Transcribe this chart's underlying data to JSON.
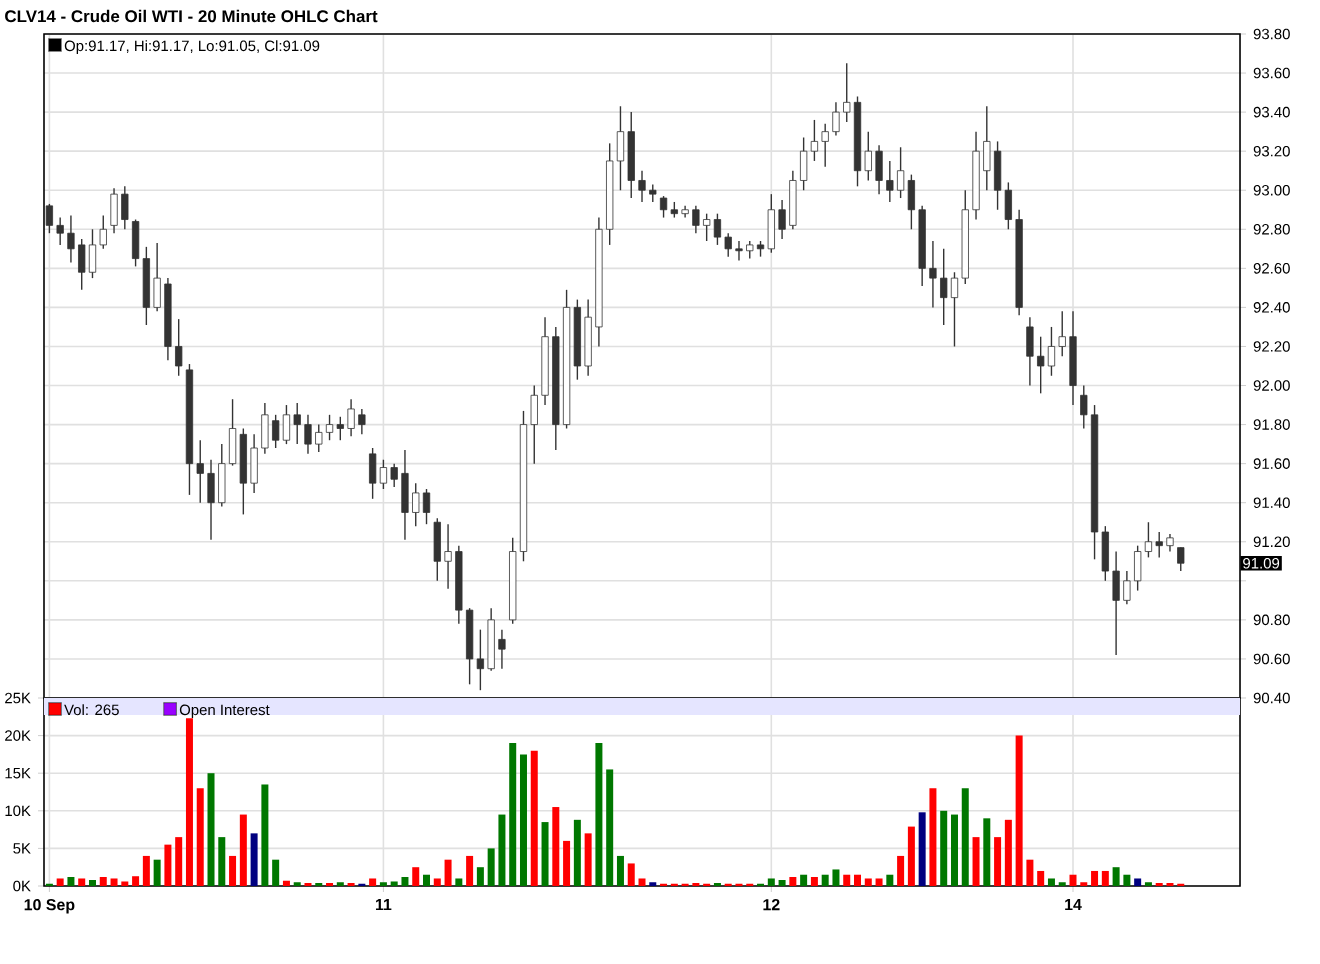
{
  "chart_data": [
    {
      "type": "candlestick",
      "title": "CLV14 - Crude Oil WTI - 20 Minute OHLC Chart",
      "color": "#333333",
      "grid": true,
      "tick_labels": "y",
      "annotations": [
        "Op:91.17, Hi:91.17, Lo:91.05, Cl:91.09",
        "91.09"
      ],
      "ylim": [
        90.4,
        93.8
      ],
      "yticks": [
        {
          "value": 90.4,
          "label": "90.40"
        },
        {
          "value": 90.6,
          "label": "90.60"
        },
        {
          "value": 90.8,
          "label": "90.80"
        },
        {
          "value": 91.0,
          "label": null
        },
        {
          "value": 91.2,
          "label": "91.20"
        },
        {
          "value": 91.4,
          "label": "91.40"
        },
        {
          "value": 91.6,
          "label": "91.60"
        },
        {
          "value": 91.8,
          "label": "91.80"
        },
        {
          "value": 92.0,
          "label": "92.00"
        },
        {
          "value": 92.2,
          "label": "92.20"
        },
        {
          "value": 92.4,
          "label": "92.40"
        },
        {
          "value": 92.6,
          "label": "92.60"
        },
        {
          "value": 92.8,
          "label": "92.80"
        },
        {
          "value": 93.0,
          "label": "93.00"
        },
        {
          "value": 93.2,
          "label": "93.20"
        },
        {
          "value": 93.4,
          "label": "93.40"
        },
        {
          "value": 93.6,
          "label": "93.60"
        },
        {
          "value": 93.8,
          "label": "93.80"
        }
      ],
      "categories": [
        null,
        null,
        null,
        null,
        null,
        null,
        null,
        null,
        null,
        null,
        null,
        null,
        null,
        null,
        null,
        null,
        null,
        null,
        null,
        null,
        null,
        null,
        null,
        null,
        null,
        null,
        null,
        null,
        null,
        null,
        null,
        null,
        null,
        null,
        null,
        null,
        null,
        null,
        null,
        null,
        null,
        null,
        null,
        null,
        null,
        null,
        null,
        null,
        null,
        null,
        null,
        null,
        null,
        null,
        null,
        null,
        null,
        null,
        null,
        null,
        null,
        null,
        null,
        null,
        null,
        null,
        null,
        null,
        null,
        null,
        null,
        null,
        null,
        null,
        null,
        null,
        null,
        null,
        null,
        null,
        null,
        null,
        null,
        null,
        null,
        null,
        null,
        null,
        null,
        null,
        null,
        null,
        null,
        null,
        null,
        null,
        null,
        null,
        null,
        null,
        null,
        null,
        null,
        null,
        null,
        null
      ],
      "ohlc": [
        [
          92.92,
          92.93,
          92.78,
          92.82
        ],
        [
          92.82,
          92.86,
          92.72,
          92.78
        ],
        [
          92.78,
          92.87,
          92.63,
          92.7
        ],
        [
          92.72,
          92.75,
          92.49,
          92.58
        ],
        [
          92.58,
          92.8,
          92.55,
          92.72
        ],
        [
          92.72,
          92.87,
          92.7,
          92.8
        ],
        [
          92.82,
          93.01,
          92.78,
          92.98
        ],
        [
          92.98,
          93.02,
          92.8,
          92.85
        ],
        [
          92.84,
          92.85,
          92.61,
          92.65
        ],
        [
          92.65,
          92.71,
          92.31,
          92.4
        ],
        [
          92.4,
          92.73,
          92.38,
          92.55
        ],
        [
          92.52,
          92.55,
          92.13,
          92.2
        ],
        [
          92.2,
          92.34,
          92.05,
          92.1
        ],
        [
          92.08,
          92.11,
          91.44,
          91.6
        ],
        [
          91.6,
          91.72,
          91.4,
          91.55
        ],
        [
          91.55,
          91.62,
          91.21,
          91.4
        ],
        [
          91.4,
          91.7,
          91.38,
          91.6
        ],
        [
          91.6,
          91.93,
          91.59,
          91.78
        ],
        [
          91.75,
          91.78,
          91.34,
          91.5
        ],
        [
          91.5,
          91.75,
          91.45,
          91.68
        ],
        [
          91.68,
          91.91,
          91.65,
          91.85
        ],
        [
          91.82,
          91.85,
          91.68,
          91.72
        ],
        [
          91.72,
          91.9,
          91.7,
          91.85
        ],
        [
          91.85,
          91.91,
          91.7,
          91.8
        ],
        [
          91.8,
          91.85,
          91.65,
          91.7
        ],
        [
          91.7,
          91.8,
          91.66,
          91.76
        ],
        [
          91.76,
          91.85,
          91.72,
          91.8
        ],
        [
          91.8,
          91.84,
          91.72,
          91.78
        ],
        [
          91.78,
          91.93,
          91.74,
          91.88
        ],
        [
          91.85,
          91.88,
          91.75,
          91.8
        ],
        [
          91.65,
          91.68,
          91.42,
          91.5
        ],
        [
          91.5,
          91.62,
          91.47,
          91.58
        ],
        [
          91.58,
          91.6,
          91.48,
          91.52
        ],
        [
          91.55,
          91.67,
          91.21,
          91.35
        ],
        [
          91.35,
          91.5,
          91.28,
          91.45
        ],
        [
          91.45,
          91.47,
          91.29,
          91.35
        ],
        [
          91.3,
          91.32,
          91.0,
          91.1
        ],
        [
          91.1,
          91.29,
          90.96,
          91.15
        ],
        [
          91.15,
          91.18,
          90.78,
          90.85
        ],
        [
          90.85,
          90.86,
          90.47,
          90.6
        ],
        [
          90.6,
          90.75,
          90.44,
          90.55
        ],
        [
          90.55,
          90.86,
          90.54,
          90.8
        ],
        [
          90.7,
          90.75,
          90.55,
          90.65
        ],
        [
          90.8,
          91.22,
          90.78,
          91.15
        ],
        [
          91.15,
          91.87,
          91.1,
          91.8
        ],
        [
          91.8,
          92.0,
          91.6,
          91.95
        ],
        [
          91.95,
          92.35,
          91.9,
          92.25
        ],
        [
          92.25,
          92.3,
          91.67,
          91.8
        ],
        [
          91.8,
          92.49,
          91.78,
          92.4
        ],
        [
          92.4,
          92.44,
          92.03,
          92.1
        ],
        [
          92.1,
          92.44,
          92.05,
          92.35
        ],
        [
          92.3,
          92.86,
          92.2,
          92.8
        ],
        [
          92.8,
          93.24,
          92.72,
          93.15
        ],
        [
          93.15,
          93.43,
          93.0,
          93.3
        ],
        [
          93.3,
          93.4,
          92.96,
          93.05
        ],
        [
          93.05,
          93.1,
          92.94,
          93.0
        ],
        [
          93.0,
          93.03,
          92.94,
          92.98
        ],
        [
          92.96,
          92.97,
          92.86,
          92.9
        ],
        [
          92.9,
          92.94,
          92.86,
          92.88
        ],
        [
          92.88,
          92.92,
          92.86,
          92.9
        ],
        [
          92.9,
          92.92,
          92.78,
          92.82
        ],
        [
          92.82,
          92.88,
          92.74,
          92.85
        ],
        [
          92.85,
          92.88,
          92.72,
          92.76
        ],
        [
          92.76,
          92.78,
          92.66,
          92.7
        ],
        [
          92.7,
          92.74,
          92.64,
          92.69
        ],
        [
          92.69,
          92.74,
          92.65,
          92.72
        ],
        [
          92.72,
          92.74,
          92.66,
          92.7
        ],
        [
          92.7,
          92.98,
          92.68,
          92.9
        ],
        [
          92.9,
          92.95,
          92.75,
          92.8
        ],
        [
          92.82,
          93.1,
          92.8,
          93.05
        ],
        [
          93.05,
          93.27,
          93.0,
          93.2
        ],
        [
          93.2,
          93.36,
          93.15,
          93.25
        ],
        [
          93.25,
          93.34,
          93.12,
          93.3
        ],
        [
          93.3,
          93.45,
          93.28,
          93.4
        ],
        [
          93.4,
          93.65,
          93.35,
          93.45
        ],
        [
          93.45,
          93.48,
          93.02,
          93.1
        ],
        [
          93.1,
          93.3,
          93.05,
          93.2
        ],
        [
          93.2,
          93.23,
          92.98,
          93.05
        ],
        [
          93.05,
          93.15,
          92.94,
          93.0
        ],
        [
          93.0,
          93.22,
          92.96,
          93.1
        ],
        [
          93.05,
          93.08,
          92.8,
          92.9
        ],
        [
          92.9,
          92.92,
          92.51,
          92.6
        ],
        [
          92.6,
          92.74,
          92.4,
          92.55
        ],
        [
          92.55,
          92.7,
          92.31,
          92.45
        ],
        [
          92.45,
          92.58,
          92.2,
          92.55
        ],
        [
          92.55,
          93.0,
          92.52,
          92.9
        ],
        [
          92.9,
          93.3,
          92.85,
          93.2
        ],
        [
          93.1,
          93.43,
          93.0,
          93.25
        ],
        [
          93.2,
          93.25,
          92.9,
          93.0
        ],
        [
          93.0,
          93.04,
          92.8,
          92.85
        ],
        [
          92.85,
          92.9,
          92.36,
          92.4
        ],
        [
          92.3,
          92.35,
          92.0,
          92.15
        ],
        [
          92.15,
          92.25,
          91.96,
          92.1
        ],
        [
          92.1,
          92.3,
          92.05,
          92.2
        ],
        [
          92.2,
          92.38,
          92.15,
          92.25
        ],
        [
          92.25,
          92.38,
          91.9,
          92.0
        ],
        [
          91.95,
          92.0,
          91.78,
          91.85
        ],
        [
          91.85,
          91.9,
          91.11,
          91.25
        ],
        [
          91.25,
          91.28,
          91.0,
          91.05
        ],
        [
          91.05,
          91.15,
          90.62,
          90.9
        ],
        [
          90.9,
          91.05,
          90.88,
          91.0
        ],
        [
          91.0,
          91.18,
          90.95,
          91.15
        ],
        [
          91.15,
          91.3,
          91.12,
          91.2
        ],
        [
          91.2,
          91.25,
          91.12,
          91.18
        ],
        [
          91.18,
          91.24,
          91.15,
          91.22
        ],
        [
          91.17,
          91.17,
          91.05,
          91.09
        ]
      ]
    },
    {
      "type": "bar",
      "grid": true,
      "legend": "top left",
      "ylim": [
        0,
        25
      ],
      "yticks": [
        {
          "value": 0,
          "label": "0K"
        },
        {
          "value": 5,
          "label": "5K"
        },
        {
          "value": 10,
          "label": "10K"
        },
        {
          "value": 15,
          "label": "15K"
        },
        {
          "value": 20,
          "label": "20K"
        },
        {
          "value": 25,
          "label": "25K"
        }
      ],
      "categories": [
        "10 Sep",
        null,
        null,
        null,
        null,
        null,
        null,
        null,
        null,
        null,
        null,
        null,
        null,
        null,
        null,
        null,
        null,
        null,
        null,
        null,
        null,
        null,
        null,
        null,
        null,
        null,
        null,
        null,
        null,
        null,
        null,
        "11",
        null,
        null,
        null,
        null,
        null,
        null,
        null,
        null,
        null,
        null,
        null,
        null,
        null,
        null,
        null,
        null,
        null,
        null,
        null,
        null,
        null,
        null,
        null,
        null,
        null,
        null,
        null,
        null,
        null,
        null,
        null,
        null,
        null,
        null,
        null,
        "12",
        null,
        null,
        null,
        null,
        null,
        null,
        null,
        null,
        null,
        null,
        null,
        null,
        null,
        null,
        null,
        null,
        null,
        null,
        null,
        null,
        null,
        null,
        null,
        null,
        null,
        null,
        null,
        "14",
        null,
        null,
        null,
        null,
        null,
        null,
        null,
        null,
        null,
        null
      ],
      "series": [
        {
          "name": "Vol: 265",
          "color": "#ff0000",
          "values": [
            0.3,
            1.0,
            1.2,
            1.0,
            0.8,
            1.2,
            1.0,
            0.6,
            1.3,
            4.0,
            3.5,
            5.5,
            6.5,
            22.3,
            13.0,
            15.0,
            6.5,
            4.0,
            9.5,
            7.0,
            13.5,
            3.5,
            0.7,
            0.5,
            0.4,
            0.4,
            0.4,
            0.5,
            0.4,
            0.3,
            1.0,
            0.5,
            0.6,
            1.2,
            2.5,
            1.5,
            1.0,
            3.5,
            1.0,
            4.0,
            2.5,
            5.0,
            9.5,
            19.0,
            17.5,
            18.0,
            8.5,
            10.5,
            6.0,
            8.8,
            7.0,
            19.0,
            15.5,
            4.0,
            3.0,
            1.0,
            0.5,
            0.3,
            0.3,
            0.3,
            0.4,
            0.3,
            0.4,
            0.3,
            0.3,
            0.3,
            0.3,
            1.0,
            0.8,
            1.2,
            1.5,
            1.2,
            1.5,
            2.2,
            1.5,
            1.5,
            1.0,
            1.0,
            1.5,
            4.0,
            7.9,
            9.8,
            13.0,
            10.0,
            9.5,
            13.0,
            6.5,
            9.0,
            6.5,
            8.8,
            20.0,
            3.5,
            2.0,
            1.0,
            0.5,
            1.5,
            0.5,
            2.0,
            2.0,
            2.5,
            1.5,
            1.0,
            0.5,
            0.4,
            0.4,
            0.3
          ],
          "colors": [
            "#007700",
            "#ff0000",
            "#007700",
            "#ff0000",
            "#007700",
            "#ff0000",
            "#ff0000",
            "#ff0000",
            "#ff0000",
            "#ff0000",
            "#007700",
            "#ff0000",
            "#ff0000",
            "#ff0000",
            "#ff0000",
            "#007700",
            "#007700",
            "#ff0000",
            "#ff0000",
            "#000080",
            "#007700",
            "#007700",
            "#ff0000",
            "#007700",
            "#ff0000",
            "#007700",
            "#ff0000",
            "#007700",
            "#ff0000",
            "#000080",
            "#ff0000",
            "#007700",
            "#007700",
            "#007700",
            "#ff0000",
            "#007700",
            "#ff0000",
            "#ff0000",
            "#007700",
            "#ff0000",
            "#007700",
            "#007700",
            "#007700",
            "#007700",
            "#007700",
            "#ff0000",
            "#007700",
            "#ff0000",
            "#ff0000",
            "#007700",
            "#ff0000",
            "#007700",
            "#007700",
            "#007700",
            "#ff0000",
            "#ff0000",
            "#000080",
            "#ff0000",
            "#ff0000",
            "#ff0000",
            "#ff0000",
            "#ff0000",
            "#007700",
            "#ff0000",
            "#ff0000",
            "#ff0000",
            "#007700",
            "#007700",
            "#007700",
            "#ff0000",
            "#007700",
            "#ff0000",
            "#007700",
            "#007700",
            "#ff0000",
            "#ff0000",
            "#ff0000",
            "#ff0000",
            "#007700",
            "#ff0000",
            "#ff0000",
            "#000080",
            "#ff0000",
            "#007700",
            "#007700",
            "#007700",
            "#ff0000",
            "#007700",
            "#ff0000",
            "#ff0000",
            "#ff0000",
            "#ff0000",
            "#ff0000",
            "#007700",
            "#007700",
            "#ff0000",
            "#ff0000",
            "#ff0000",
            "#ff0000",
            "#007700",
            "#007700",
            "#000080",
            "#007700",
            "#ff0000",
            "#ff0000",
            "#ff0000"
          ]
        },
        {
          "name": "Open Interest",
          "color": "#9900ff",
          "values": [
            null,
            null,
            null,
            null,
            null,
            null,
            null,
            null,
            null,
            null,
            null,
            null,
            null,
            null,
            null,
            null,
            null,
            null,
            null,
            null,
            null,
            null,
            null,
            null,
            null,
            null,
            null,
            null,
            null,
            null,
            null,
            null,
            null,
            null,
            null,
            null,
            null,
            null,
            null,
            null,
            null,
            null,
            null,
            null,
            null,
            null,
            null,
            null,
            null,
            null,
            null,
            null,
            null,
            null,
            null,
            null,
            null,
            null,
            null,
            null,
            null,
            null,
            null,
            null,
            null,
            null,
            null,
            null,
            null,
            null,
            null,
            null,
            null,
            null,
            null,
            null,
            null,
            null,
            null,
            null,
            null,
            null,
            null,
            null,
            null,
            null,
            null,
            null,
            null,
            null,
            null,
            null,
            null,
            null,
            null,
            null,
            null,
            null,
            null,
            null,
            null,
            null,
            null,
            null,
            null,
            null
          ]
        }
      ]
    }
  ]
}
